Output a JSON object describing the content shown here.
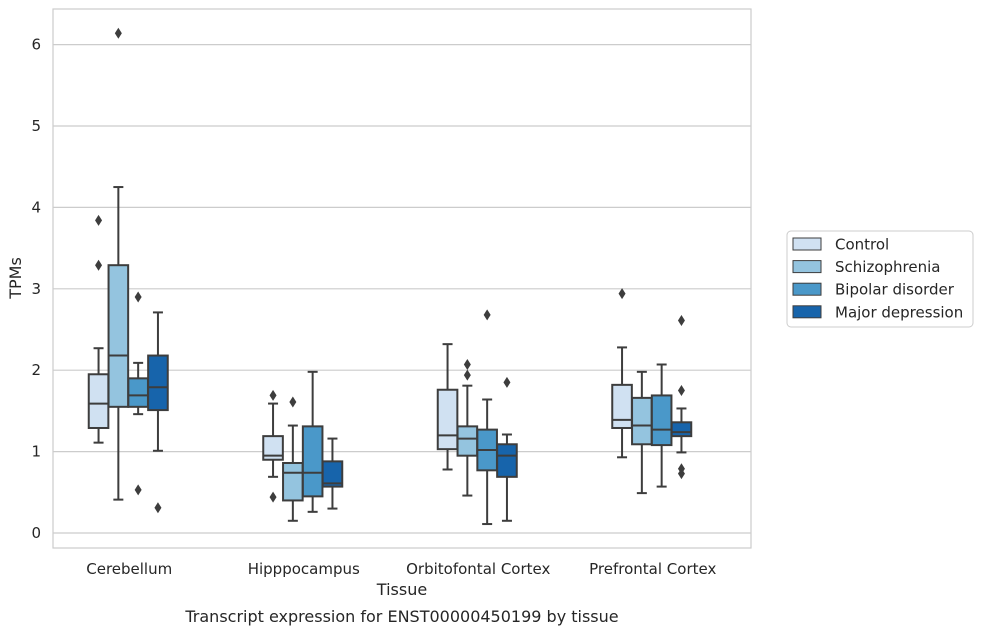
{
  "chart_data": {
    "type": "box",
    "title": "",
    "caption": "Transcript expression for ENST00000450199 by tissue",
    "xlabel": "Tissue",
    "ylabel": "TPMs",
    "ylim": [
      -0.15,
      6.45
    ],
    "yticks": [
      0,
      1,
      2,
      3,
      4,
      5,
      6
    ],
    "grid": "horizontal",
    "legend_position": "right",
    "categories": [
      "Cerebellum",
      "Hipppocampus",
      "Orbitofontal Cortex",
      "Prefrontal Cortex"
    ],
    "series": [
      {
        "name": "Control",
        "color": "#d0e1f2",
        "boxes": [
          {
            "whisker_low": 1.11,
            "q1": 1.29,
            "median": 1.59,
            "q3": 1.95,
            "whisker_high": 2.27,
            "outliers": [
              3.29,
              3.84
            ]
          },
          {
            "whisker_low": 0.69,
            "q1": 0.9,
            "median": 0.95,
            "q3": 1.19,
            "whisker_high": 1.59,
            "outliers": [
              0.44,
              1.69
            ]
          },
          {
            "whisker_low": 0.78,
            "q1": 1.03,
            "median": 1.2,
            "q3": 1.76,
            "whisker_high": 2.32,
            "outliers": []
          },
          {
            "whisker_low": 0.93,
            "q1": 1.29,
            "median": 1.39,
            "q3": 1.82,
            "whisker_high": 2.28,
            "outliers": [
              2.94
            ]
          }
        ]
      },
      {
        "name": "Schizophrenia",
        "color": "#94c4df",
        "boxes": [
          {
            "whisker_low": 0.41,
            "q1": 1.55,
            "median": 2.18,
            "q3": 3.29,
            "whisker_high": 4.25,
            "outliers": [
              6.14
            ]
          },
          {
            "whisker_low": 0.15,
            "q1": 0.4,
            "median": 0.74,
            "q3": 0.86,
            "whisker_high": 1.32,
            "outliers": [
              1.61
            ]
          },
          {
            "whisker_low": 0.46,
            "q1": 0.95,
            "median": 1.16,
            "q3": 1.31,
            "whisker_high": 1.81,
            "outliers": [
              1.94,
              2.07
            ]
          },
          {
            "whisker_low": 0.49,
            "q1": 1.09,
            "median": 1.32,
            "q3": 1.66,
            "whisker_high": 1.98,
            "outliers": []
          }
        ]
      },
      {
        "name": "Bipolar disorder",
        "color": "#4a98c9",
        "boxes": [
          {
            "whisker_low": 1.46,
            "q1": 1.55,
            "median": 1.69,
            "q3": 1.9,
            "whisker_high": 2.09,
            "outliers": [
              0.53,
              2.9
            ]
          },
          {
            "whisker_low": 0.26,
            "q1": 0.45,
            "median": 0.74,
            "q3": 1.31,
            "whisker_high": 1.98,
            "outliers": []
          },
          {
            "whisker_low": 0.11,
            "q1": 0.77,
            "median": 1.02,
            "q3": 1.27,
            "whisker_high": 1.64,
            "outliers": [
              2.68
            ]
          },
          {
            "whisker_low": 0.57,
            "q1": 1.08,
            "median": 1.27,
            "q3": 1.69,
            "whisker_high": 2.07,
            "outliers": []
          }
        ]
      },
      {
        "name": "Major depression",
        "color": "#1764ab",
        "boxes": [
          {
            "whisker_low": 1.01,
            "q1": 1.51,
            "median": 1.79,
            "q3": 2.18,
            "whisker_high": 2.71,
            "outliers": [
              0.31
            ]
          },
          {
            "whisker_low": 0.3,
            "q1": 0.57,
            "median": 0.61,
            "q3": 0.88,
            "whisker_high": 1.16,
            "outliers": []
          },
          {
            "whisker_low": 0.15,
            "q1": 0.69,
            "median": 0.95,
            "q3": 1.09,
            "whisker_high": 1.21,
            "outliers": [
              1.85
            ]
          },
          {
            "whisker_low": 0.99,
            "q1": 1.19,
            "median": 1.24,
            "q3": 1.36,
            "whisker_high": 1.53,
            "outliers": [
              0.73,
              0.79,
              1.75,
              2.61
            ]
          }
        ]
      }
    ]
  }
}
